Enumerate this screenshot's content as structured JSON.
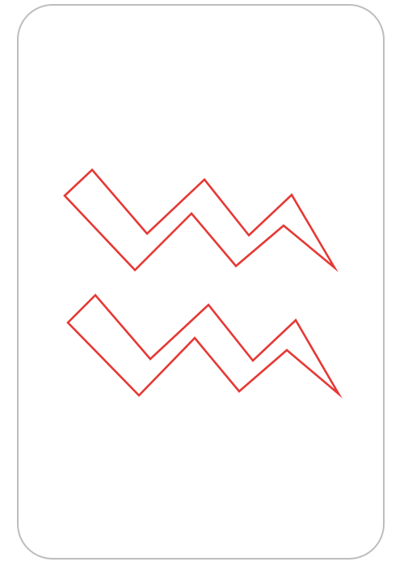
{
  "card": {
    "symbol": "aquarius",
    "border_color": "#bdbdbd",
    "stroke_color": "#e53935"
  }
}
